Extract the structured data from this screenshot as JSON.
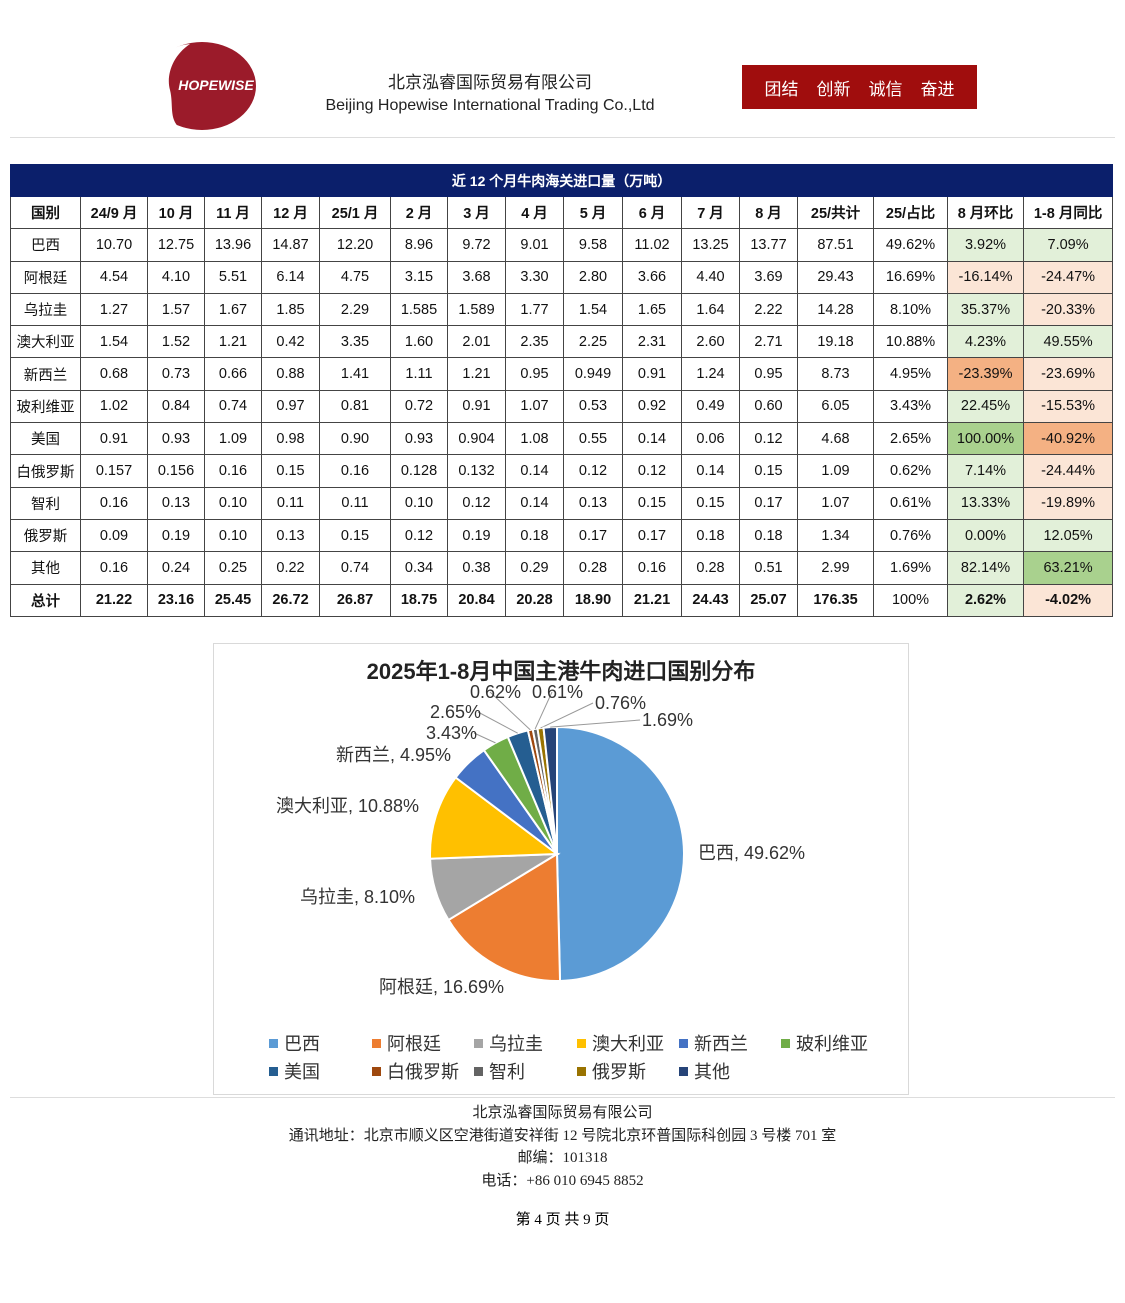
{
  "header": {
    "logo_text": "HOPEWISE",
    "company_cn": "北京泓睿国际贸易有限公司",
    "company_en": "Beijing Hopewise International Trading Co.,Ltd",
    "slogans": [
      "团结",
      "创新",
      "诚信",
      "奋进"
    ]
  },
  "table": {
    "title": "近 12 个月牛肉海关进口量（万吨）",
    "headers": [
      "国别",
      "24/9 月",
      "10 月",
      "11 月",
      "12 月",
      "25/1 月",
      "2 月",
      "3 月",
      "4 月",
      "5 月",
      "6 月",
      "7 月",
      "8 月",
      "25/共计",
      "25/占比",
      "8 月环比",
      "1-8 月同比"
    ],
    "rows": [
      {
        "cells": [
          "巴西",
          "10.70",
          "12.75",
          "13.96",
          "14.87",
          "12.20",
          "8.96",
          "9.72",
          "9.01",
          "9.58",
          "11.02",
          "13.25",
          "13.77",
          "87.51",
          "49.62%",
          "3.92%",
          "7.09%"
        ],
        "tones": [
          "g1",
          "g1"
        ]
      },
      {
        "cells": [
          "阿根廷",
          "4.54",
          "4.10",
          "5.51",
          "6.14",
          "4.75",
          "3.15",
          "3.68",
          "3.30",
          "2.80",
          "3.66",
          "4.40",
          "3.69",
          "29.43",
          "16.69%",
          "-16.14%",
          "-24.47%"
        ],
        "tones": [
          "p1",
          "p1"
        ]
      },
      {
        "cells": [
          "乌拉圭",
          "1.27",
          "1.57",
          "1.67",
          "1.85",
          "2.29",
          "1.585",
          "1.589",
          "1.77",
          "1.54",
          "1.65",
          "1.64",
          "2.22",
          "14.28",
          "8.10%",
          "35.37%",
          "-20.33%"
        ],
        "tones": [
          "g1",
          "p1"
        ]
      },
      {
        "cells": [
          "澳大利亚",
          "1.54",
          "1.52",
          "1.21",
          "0.42",
          "3.35",
          "1.60",
          "2.01",
          "2.35",
          "2.25",
          "2.31",
          "2.60",
          "2.71",
          "19.18",
          "10.88%",
          "4.23%",
          "49.55%"
        ],
        "tones": [
          "g1",
          "g1"
        ]
      },
      {
        "cells": [
          "新西兰",
          "0.68",
          "0.73",
          "0.66",
          "0.88",
          "1.41",
          "1.11",
          "1.21",
          "0.95",
          "0.949",
          "0.91",
          "1.24",
          "0.95",
          "8.73",
          "4.95%",
          "-23.39%",
          "-23.69%"
        ],
        "tones": [
          "o2",
          "p1"
        ]
      },
      {
        "cells": [
          "玻利维亚",
          "1.02",
          "0.84",
          "0.74",
          "0.97",
          "0.81",
          "0.72",
          "0.91",
          "1.07",
          "0.53",
          "0.92",
          "0.49",
          "0.60",
          "6.05",
          "3.43%",
          "22.45%",
          "-15.53%"
        ],
        "tones": [
          "g1",
          "p1"
        ]
      },
      {
        "cells": [
          "美国",
          "0.91",
          "0.93",
          "1.09",
          "0.98",
          "0.90",
          "0.93",
          "0.904",
          "1.08",
          "0.55",
          "0.14",
          "0.06",
          "0.12",
          "4.68",
          "2.65%",
          "100.00%",
          "-40.92%"
        ],
        "tones": [
          "g2",
          "o2"
        ]
      },
      {
        "cells": [
          "白俄罗斯",
          "0.157",
          "0.156",
          "0.16",
          "0.15",
          "0.16",
          "0.128",
          "0.132",
          "0.14",
          "0.12",
          "0.12",
          "0.14",
          "0.15",
          "1.09",
          "0.62%",
          "7.14%",
          "-24.44%"
        ],
        "tones": [
          "g1",
          "p1"
        ]
      },
      {
        "cells": [
          "智利",
          "0.16",
          "0.13",
          "0.10",
          "0.11",
          "0.11",
          "0.10",
          "0.12",
          "0.14",
          "0.13",
          "0.15",
          "0.15",
          "0.17",
          "1.07",
          "0.61%",
          "13.33%",
          "-19.89%"
        ],
        "tones": [
          "g1",
          "p1"
        ]
      },
      {
        "cells": [
          "俄罗斯",
          "0.09",
          "0.19",
          "0.10",
          "0.13",
          "0.15",
          "0.12",
          "0.19",
          "0.18",
          "0.17",
          "0.17",
          "0.18",
          "0.18",
          "1.34",
          "0.76%",
          "0.00%",
          "12.05%"
        ],
        "tones": [
          "g1",
          "g1"
        ]
      },
      {
        "cells": [
          "其他",
          "0.16",
          "0.24",
          "0.25",
          "0.22",
          "0.74",
          "0.34",
          "0.38",
          "0.29",
          "0.28",
          "0.16",
          "0.28",
          "0.51",
          "2.99",
          "1.69%",
          "82.14%",
          "63.21%"
        ],
        "tones": [
          "g1",
          "g2"
        ]
      },
      {
        "cells": [
          "总计",
          "21.22",
          "23.16",
          "25.45",
          "26.72",
          "26.87",
          "18.75",
          "20.84",
          "20.28",
          "18.90",
          "21.21",
          "24.43",
          "25.07",
          "176.35",
          "100%",
          "2.62%",
          "-4.02%"
        ],
        "tones": [
          "g1",
          "p1"
        ],
        "total": true
      }
    ]
  },
  "chart_data": {
    "type": "pie",
    "title": "2025年1-8月中国主港牛肉进口国别分布",
    "legend": "bottom",
    "categories": [
      "巴西",
      "阿根廷",
      "乌拉圭",
      "澳大利亚",
      "新西兰",
      "玻利维亚",
      "美国",
      "白俄罗斯",
      "智利",
      "俄罗斯",
      "其他"
    ],
    "values": [
      49.62,
      16.69,
      8.1,
      10.88,
      4.95,
      3.43,
      2.65,
      0.62,
      0.61,
      0.76,
      1.69
    ],
    "labels": [
      "巴西, 49.62%",
      "阿根廷, 16.69%",
      "乌拉圭, 8.10%",
      "澳大利亚, 10.88%",
      "新西兰, 4.95%",
      "3.43%",
      "2.65%",
      "0.62%",
      "0.61%",
      "0.76%",
      "1.69%"
    ],
    "colors": [
      "#5b9bd5",
      "#ed7d31",
      "#a5a5a5",
      "#ffc000",
      "#4472c4",
      "#70ad47",
      "#255e91",
      "#9e480e",
      "#636363",
      "#997300",
      "#264478"
    ]
  },
  "footer": {
    "company": "北京泓睿国际贸易有限公司",
    "address": "通讯地址：北京市顺义区空港街道安祥街 12 号院北京环普国际科创园 3 号楼 701 室",
    "postcode": "邮编：101318",
    "phone": "电话：+86 010 6945 8852",
    "page": "第 4 页 共 9 页"
  }
}
